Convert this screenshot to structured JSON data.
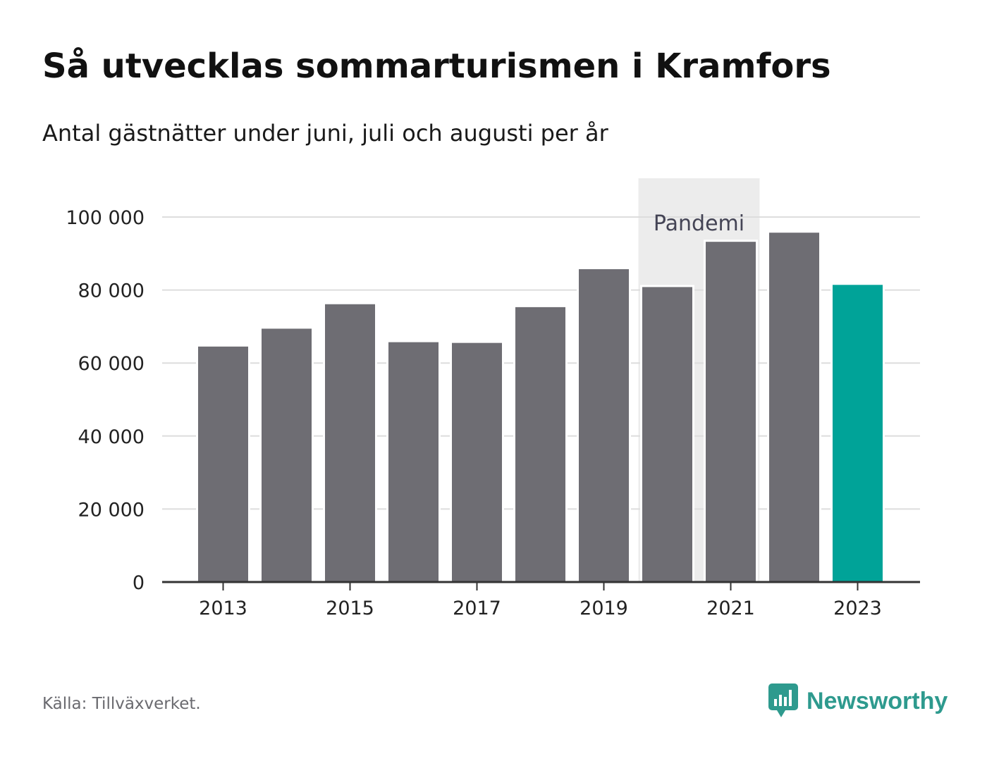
{
  "title": "Så utvecklas sommarturismen i Kramfors",
  "subtitle": "Antal gästnätter under juni, juli och augusti per år",
  "source": "Källa: Tillväxverket.",
  "brand": {
    "name": "Newsworthy",
    "icon": "newsworthy-logo-icon",
    "color": "#2e9a8e"
  },
  "colors": {
    "bar": "#6e6d73",
    "highlight": "#00a398",
    "pandemic_bg": "#ececec",
    "grid": "#dddddd",
    "axis": "#333333"
  },
  "chart_data": {
    "type": "bar",
    "categories": [
      "2013",
      "2014",
      "2015",
      "2016",
      "2017",
      "2018",
      "2019",
      "2020",
      "2021",
      "2022",
      "2023"
    ],
    "values": [
      64800,
      69700,
      76400,
      66000,
      65800,
      75600,
      86000,
      81100,
      93500,
      96000,
      81700
    ],
    "highlight_category": "2023",
    "ylim": [
      0,
      110000
    ],
    "y_ticks": [
      0,
      20000,
      40000,
      60000,
      80000,
      100000
    ],
    "y_tick_labels": [
      "0",
      "20 000",
      "40 000",
      "60 000",
      "80 000",
      "100 000"
    ],
    "x_tick_labels": [
      "2013",
      "2015",
      "2017",
      "2019",
      "2021",
      "2023"
    ],
    "annotation": {
      "label": "Pandemi",
      "categories": [
        "2020",
        "2021"
      ]
    },
    "xlabel": "",
    "ylabel": "",
    "grid": true
  }
}
